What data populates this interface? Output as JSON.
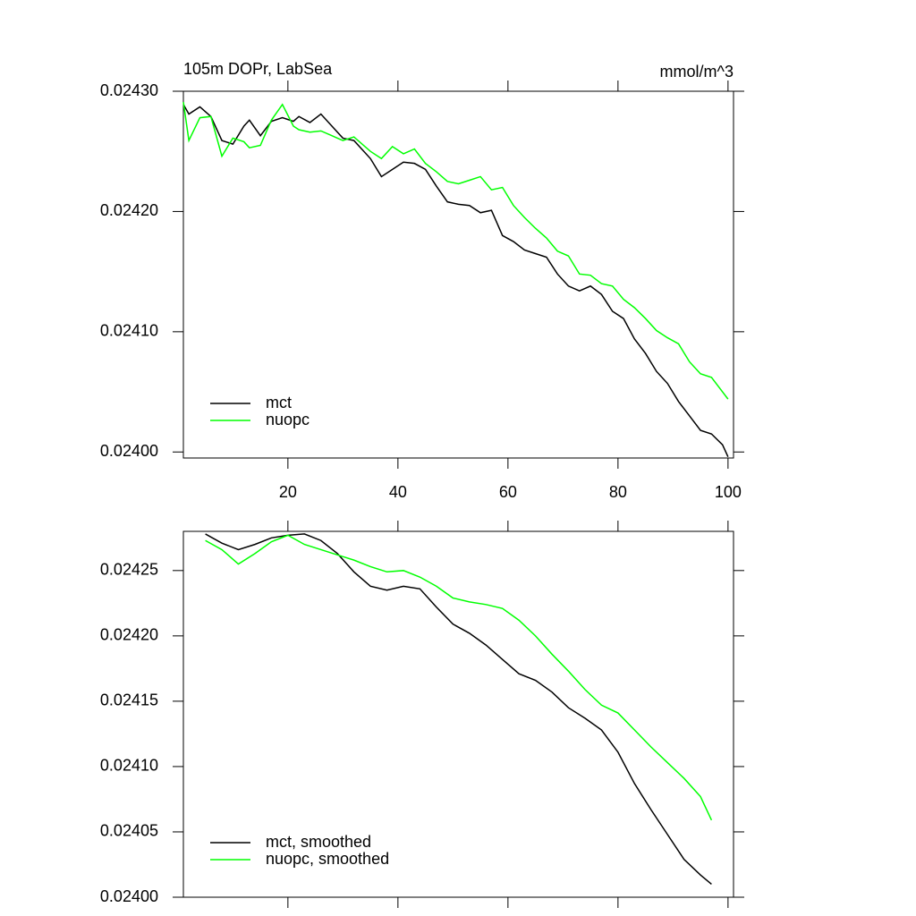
{
  "chart_data": [
    {
      "type": "line",
      "title": "105m DOPr, LabSea",
      "units": "mmol/m^3",
      "x": [
        1,
        2,
        4,
        6,
        8,
        10,
        12,
        13,
        15,
        17,
        19,
        21,
        22,
        24,
        26,
        28,
        30,
        32,
        35,
        37,
        39,
        41,
        43,
        45,
        47,
        49,
        51,
        53,
        55,
        57,
        59,
        61,
        63,
        65,
        67,
        69,
        71,
        73,
        75,
        77,
        79,
        81,
        83,
        85,
        87,
        89,
        91,
        93,
        95,
        97,
        99,
        100
      ],
      "series": [
        {
          "name": "mct",
          "color": "#000000",
          "values": [
            0.024289,
            0.024281,
            0.024287,
            0.024279,
            0.024259,
            0.024256,
            0.024271,
            0.024276,
            0.024263,
            0.024275,
            0.024278,
            0.024275,
            0.024279,
            0.024274,
            0.024281,
            0.024271,
            0.024261,
            0.024259,
            0.024244,
            0.024229,
            0.024235,
            0.024241,
            0.02424,
            0.024235,
            0.024221,
            0.024208,
            0.024206,
            0.024205,
            0.024199,
            0.024201,
            0.02418,
            0.024175,
            0.024168,
            0.024165,
            0.024162,
            0.024148,
            0.024138,
            0.024134,
            0.024138,
            0.024131,
            0.024117,
            0.024111,
            0.024094,
            0.024082,
            0.024067,
            0.024057,
            0.024042,
            0.02403,
            0.024018,
            0.024015,
            0.024006,
            0.023996
          ]
        },
        {
          "name": "nuopc",
          "color": "#00ff00",
          "values": [
            0.024291,
            0.024259,
            0.024278,
            0.024279,
            0.024246,
            0.024261,
            0.024258,
            0.024253,
            0.024255,
            0.024276,
            0.024289,
            0.024271,
            0.024268,
            0.024266,
            0.024267,
            0.024263,
            0.024259,
            0.024262,
            0.02425,
            0.024244,
            0.024254,
            0.024248,
            0.024252,
            0.02424,
            0.024233,
            0.024225,
            0.024223,
            0.024226,
            0.024229,
            0.024218,
            0.02422,
            0.024205,
            0.024195,
            0.024186,
            0.024178,
            0.024167,
            0.024163,
            0.024148,
            0.024147,
            0.02414,
            0.024138,
            0.024127,
            0.02412,
            0.024111,
            0.024101,
            0.024095,
            0.02409,
            0.024075,
            0.024065,
            0.024062,
            0.02405,
            0.024044
          ]
        }
      ],
      "xlim": [
        1,
        101
      ],
      "xticks": [
        20,
        40,
        60,
        80,
        100
      ],
      "xtick_labels": true,
      "ylim": [
        0.023995,
        0.0243
      ],
      "yticks": [
        {
          "value": 0.024,
          "label": "0.02400"
        },
        {
          "value": 0.0241,
          "label": "0.02410"
        },
        {
          "value": 0.0242,
          "label": "0.02420"
        },
        {
          "value": 0.0243,
          "label": "0.02430"
        }
      ],
      "legend": "lower left"
    },
    {
      "type": "line",
      "x": [
        5,
        8,
        11,
        14,
        17,
        20,
        23,
        26,
        29,
        32,
        35,
        38,
        41,
        44,
        47,
        50,
        53,
        56,
        59,
        62,
        65,
        68,
        71,
        74,
        77,
        80,
        83,
        86,
        89,
        92,
        95,
        97
      ],
      "series": [
        {
          "name": "mct, smoothed",
          "color": "#000000",
          "values": [
            0.024278,
            0.024271,
            0.024266,
            0.02427,
            0.024275,
            0.024277,
            0.024278,
            0.024273,
            0.024263,
            0.024249,
            0.024238,
            0.024235,
            0.024238,
            0.024236,
            0.024222,
            0.024209,
            0.024202,
            0.024193,
            0.024182,
            0.024171,
            0.024166,
            0.024157,
            0.024145,
            0.024137,
            0.024128,
            0.024111,
            0.024087,
            0.024067,
            0.024048,
            0.024029,
            0.024017,
            0.02401
          ]
        },
        {
          "name": "nuopc, smoothed",
          "color": "#00ff00",
          "values": [
            0.024273,
            0.024266,
            0.024255,
            0.024263,
            0.024272,
            0.024277,
            0.02427,
            0.024266,
            0.024262,
            0.024258,
            0.024253,
            0.024249,
            0.02425,
            0.024245,
            0.024238,
            0.024229,
            0.024226,
            0.024224,
            0.024221,
            0.024212,
            0.0242,
            0.024186,
            0.024173,
            0.024159,
            0.024147,
            0.024141,
            0.024128,
            0.024115,
            0.024103,
            0.024091,
            0.024077,
            0.024059
          ]
        }
      ],
      "xlim": [
        1,
        101
      ],
      "xticks": [
        20,
        40,
        60,
        80,
        100
      ],
      "xtick_labels": false,
      "ylim": [
        0.024,
        0.02428
      ],
      "yticks": [
        {
          "value": 0.024,
          "label": "0.02400"
        },
        0.02405,
        {
          "value": 0.0241,
          "label": "0.02410"
        },
        0.02415,
        {
          "value": 0.0242,
          "label": "0.02420"
        },
        0.02425
      ],
      "legend": "lower left"
    }
  ]
}
